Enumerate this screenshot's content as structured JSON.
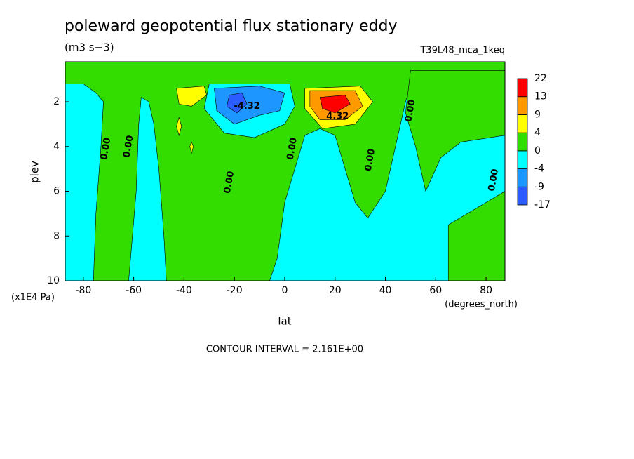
{
  "chart_data": {
    "type": "contour",
    "title": "poleward geopotential flux stationary eddy",
    "subtitle": "(m3 s−3)",
    "dataset": "T39L48_mca_1keq",
    "x_label": "lat",
    "x_units": "(degrees_north)",
    "y_label": "plev",
    "y_units": "(x1E4 Pa)",
    "footnote": "CONTOUR INTERVAL = 2.161E+00",
    "xlim": [
      -87.2,
      87.5
    ],
    "ylim": [
      10,
      0.21
    ],
    "xticks": [
      -80,
      -60,
      -40,
      -20,
      0,
      20,
      40,
      60,
      80
    ],
    "yticks": [
      2,
      4,
      6,
      8,
      10
    ],
    "levels": [
      -17,
      -9,
      -4,
      0,
      4,
      9,
      13,
      22
    ],
    "colors": [
      "#2a5cff",
      "#1e96ff",
      "#00ffff",
      "#33dd00",
      "#ffff00",
      "#ff9900",
      "#ff0000"
    ],
    "regions": [
      {
        "value": -2,
        "points": [
          [
            -87.2,
            0.21
          ],
          [
            87.5,
            0.21
          ],
          [
            87.5,
            10
          ],
          [
            -87.2,
            10
          ]
        ]
      },
      {
        "value": 2,
        "points": [
          [
            -87.2,
            0.21
          ],
          [
            87.5,
            0.21
          ],
          [
            87.5,
            1.0
          ],
          [
            70,
            1.2
          ],
          [
            58,
            0.9
          ],
          [
            52,
            0.6
          ],
          [
            48,
            2
          ],
          [
            44,
            4
          ],
          [
            40,
            6
          ],
          [
            33,
            7.2
          ],
          [
            28,
            6.5
          ],
          [
            24,
            5
          ],
          [
            20,
            3.5
          ],
          [
            14,
            3.2
          ],
          [
            8,
            3.5
          ],
          [
            4,
            5
          ],
          [
            0,
            6.5
          ],
          [
            -3,
            9
          ],
          [
            -6,
            10
          ],
          [
            -47,
            10
          ],
          [
            -48,
            8
          ],
          [
            -50,
            5
          ],
          [
            -52,
            3
          ],
          [
            -54,
            2
          ],
          [
            -57,
            1.8
          ],
          [
            -58,
            3
          ],
          [
            -59,
            6
          ],
          [
            -62,
            10
          ],
          [
            -76,
            10
          ],
          [
            -75,
            7
          ],
          [
            -73,
            4
          ],
          [
            -72,
            2
          ],
          [
            -75,
            1.6
          ],
          [
            -80,
            1.2
          ],
          [
            -87.2,
            1.2
          ]
        ]
      },
      {
        "value": 2,
        "points": [
          [
            50,
            0.6
          ],
          [
            87.5,
            0.6
          ],
          [
            87.5,
            3.5
          ],
          [
            70,
            3.8
          ],
          [
            62,
            4.5
          ],
          [
            56,
            6
          ],
          [
            52,
            4
          ],
          [
            48,
            2.5
          ]
        ]
      },
      {
        "value": 2,
        "points": [
          [
            65,
            7.5
          ],
          [
            80,
            6.5
          ],
          [
            87.5,
            6
          ],
          [
            87.5,
            10
          ],
          [
            65,
            10
          ]
        ]
      },
      {
        "value": -2,
        "points": [
          [
            -30,
            1.2
          ],
          [
            2,
            1.2
          ],
          [
            4,
            2.2
          ],
          [
            0,
            3
          ],
          [
            -12,
            3.6
          ],
          [
            -24,
            3.4
          ],
          [
            -32,
            2.3
          ]
        ]
      },
      {
        "value": -6,
        "points": [
          [
            -28,
            1.4
          ],
          [
            -10,
            1.3
          ],
          [
            0,
            1.6
          ],
          [
            -2,
            2.4
          ],
          [
            -10,
            2.6
          ],
          [
            -20,
            3
          ],
          [
            -27,
            2.4
          ]
        ]
      },
      {
        "value": -12,
        "points": [
          [
            -22,
            1.7
          ],
          [
            -17,
            1.6
          ],
          [
            -15,
            2.1
          ],
          [
            -19,
            2.5
          ],
          [
            -23,
            2.2
          ]
        ]
      },
      {
        "value": 6,
        "points": [
          [
            8,
            1.4
          ],
          [
            30,
            1.3
          ],
          [
            35,
            2
          ],
          [
            28,
            3
          ],
          [
            15,
            3.2
          ],
          [
            8,
            2.3
          ]
        ]
      },
      {
        "value": 11,
        "points": [
          [
            10,
            1.5
          ],
          [
            28,
            1.5
          ],
          [
            31,
            2.2
          ],
          [
            24,
            2.8
          ],
          [
            14,
            2.8
          ],
          [
            10,
            2.2
          ]
        ]
      },
      {
        "value": 17,
        "points": [
          [
            14,
            1.8
          ],
          [
            24,
            1.7
          ],
          [
            26,
            2.1
          ],
          [
            20,
            2.5
          ],
          [
            15,
            2.3
          ]
        ]
      },
      {
        "value": 6,
        "points": [
          [
            -43,
            1.4
          ],
          [
            -32,
            1.3
          ],
          [
            -31,
            1.7
          ],
          [
            -37,
            2.2
          ],
          [
            -42,
            2.1
          ]
        ]
      },
      {
        "value": 6,
        "points": [
          [
            -42,
            2.7
          ],
          [
            -41,
            3.1
          ],
          [
            -42,
            3.5
          ],
          [
            -43,
            3.1
          ]
        ]
      },
      {
        "value": 6,
        "points": [
          [
            -37,
            3.8
          ],
          [
            -36.3,
            4
          ],
          [
            -37,
            4.3
          ],
          [
            -37.7,
            4
          ]
        ]
      }
    ],
    "contour_labels": [
      {
        "text": "-4.32",
        "x": -15,
        "y": 2.2
      },
      {
        "text": "4.32",
        "x": 21,
        "y": 2.65
      },
      {
        "text": "0.00",
        "x": -71,
        "y": 4.1
      },
      {
        "text": "0.00",
        "x": -62,
        "y": 4.0
      },
      {
        "text": "0.00",
        "x": -22,
        "y": 5.6
      },
      {
        "text": "0.00",
        "x": 3,
        "y": 4.1
      },
      {
        "text": "0.00",
        "x": 34,
        "y": 4.6
      },
      {
        "text": "0.00",
        "x": 50,
        "y": 2.4
      },
      {
        "text": "0.00",
        "x": 83,
        "y": 5.5
      }
    ]
  }
}
